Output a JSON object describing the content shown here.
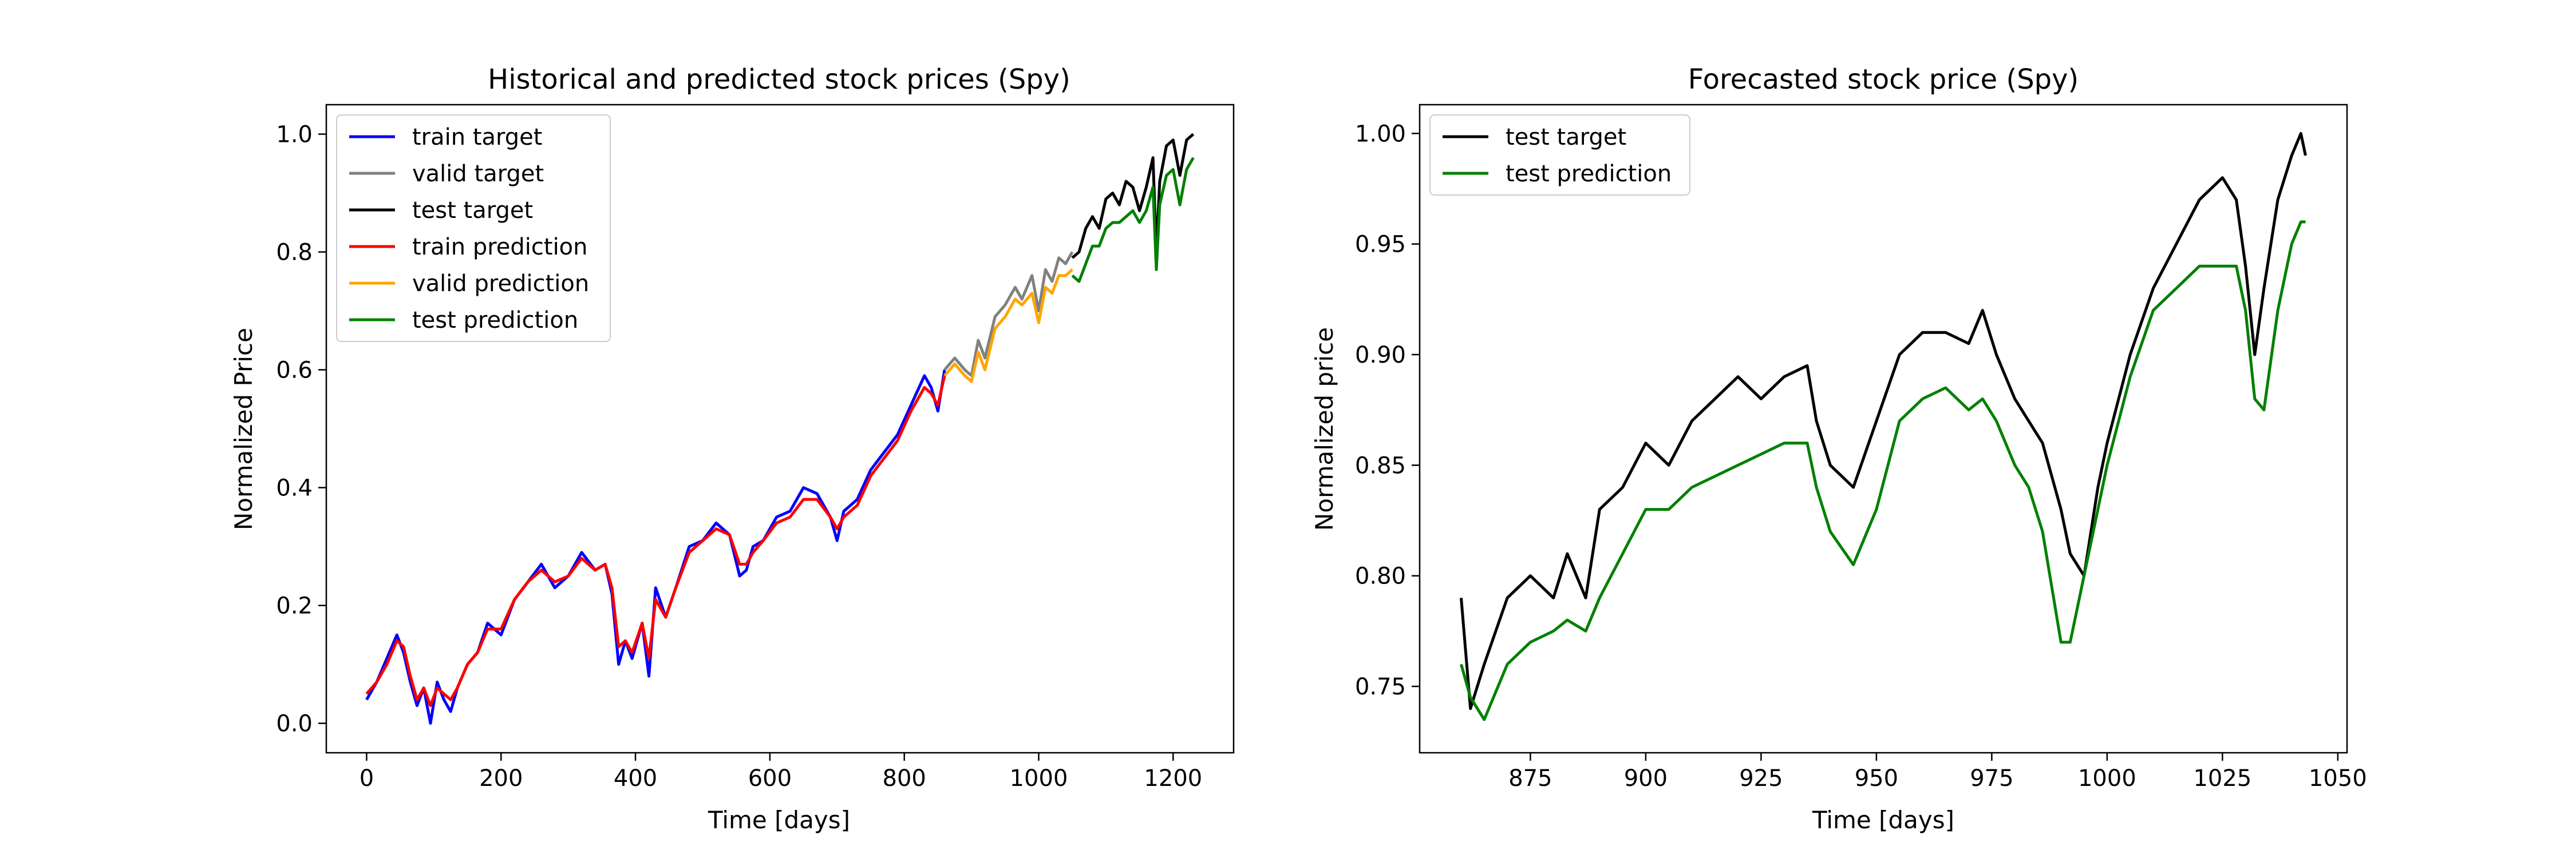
{
  "chart_data": [
    {
      "type": "line",
      "title": "Historical and predicted stock prices (Spy)",
      "xlabel": "Time [days]",
      "ylabel": "Normalized Price",
      "xlim": [
        -60,
        1290
      ],
      "ylim": [
        -0.05,
        1.05
      ],
      "xticks": [
        0,
        200,
        400,
        600,
        800,
        1000,
        1200
      ],
      "yticks": [
        0.0,
        0.2,
        0.4,
        0.6,
        0.8,
        1.0
      ],
      "grid": false,
      "legend_position": "upper left",
      "series": [
        {
          "name": "train target",
          "color": "#0000ff",
          "x": [
            0,
            15,
            30,
            45,
            55,
            65,
            75,
            85,
            95,
            105,
            115,
            125,
            135,
            150,
            165,
            180,
            200,
            220,
            240,
            260,
            280,
            300,
            320,
            340,
            355,
            365,
            375,
            385,
            395,
            410,
            420,
            430,
            445,
            460,
            480,
            500,
            520,
            540,
            555,
            565,
            575,
            590,
            610,
            630,
            650,
            670,
            690,
            700,
            710,
            730,
            750,
            770,
            790,
            810,
            830,
            840,
            850,
            860
          ],
          "y": [
            0.04,
            0.07,
            0.11,
            0.15,
            0.12,
            0.07,
            0.03,
            0.06,
            0.0,
            0.07,
            0.04,
            0.02,
            0.06,
            0.1,
            0.12,
            0.17,
            0.15,
            0.21,
            0.24,
            0.27,
            0.23,
            0.25,
            0.29,
            0.26,
            0.27,
            0.22,
            0.1,
            0.14,
            0.11,
            0.17,
            0.08,
            0.23,
            0.18,
            0.23,
            0.3,
            0.31,
            0.34,
            0.32,
            0.25,
            0.26,
            0.3,
            0.31,
            0.35,
            0.36,
            0.4,
            0.39,
            0.35,
            0.31,
            0.36,
            0.38,
            0.43,
            0.46,
            0.49,
            0.54,
            0.59,
            0.57,
            0.53,
            0.6
          ]
        },
        {
          "name": "valid target",
          "color": "#808080",
          "x": [
            860,
            875,
            890,
            900,
            910,
            920,
            935,
            950,
            965,
            975,
            990,
            1000,
            1010,
            1020,
            1030,
            1040,
            1050
          ],
          "y": [
            0.6,
            0.62,
            0.6,
            0.59,
            0.65,
            0.62,
            0.69,
            0.71,
            0.74,
            0.72,
            0.76,
            0.7,
            0.77,
            0.75,
            0.79,
            0.78,
            0.8
          ]
        },
        {
          "name": "test target",
          "color": "#000000",
          "x": [
            1050,
            1060,
            1070,
            1080,
            1090,
            1100,
            1110,
            1120,
            1130,
            1140,
            1150,
            1160,
            1170,
            1175,
            1180,
            1190,
            1200,
            1210,
            1220,
            1230
          ],
          "y": [
            0.79,
            0.8,
            0.84,
            0.86,
            0.84,
            0.89,
            0.9,
            0.88,
            0.92,
            0.91,
            0.87,
            0.91,
            0.96,
            0.8,
            0.92,
            0.98,
            0.99,
            0.93,
            0.99,
            1.0
          ]
        },
        {
          "name": "train prediction",
          "color": "#ff0000",
          "x": [
            0,
            15,
            30,
            45,
            55,
            65,
            75,
            85,
            95,
            105,
            115,
            125,
            135,
            150,
            165,
            180,
            200,
            220,
            240,
            260,
            280,
            300,
            320,
            340,
            355,
            365,
            375,
            385,
            395,
            410,
            420,
            430,
            445,
            460,
            480,
            500,
            520,
            540,
            555,
            565,
            575,
            590,
            610,
            630,
            650,
            670,
            690,
            700,
            710,
            730,
            750,
            770,
            790,
            810,
            830,
            840,
            850,
            860
          ],
          "y": [
            0.05,
            0.07,
            0.1,
            0.14,
            0.13,
            0.08,
            0.04,
            0.06,
            0.03,
            0.06,
            0.05,
            0.04,
            0.06,
            0.1,
            0.12,
            0.16,
            0.16,
            0.21,
            0.24,
            0.26,
            0.24,
            0.25,
            0.28,
            0.26,
            0.27,
            0.23,
            0.13,
            0.14,
            0.12,
            0.17,
            0.11,
            0.21,
            0.18,
            0.23,
            0.29,
            0.31,
            0.33,
            0.32,
            0.27,
            0.27,
            0.29,
            0.31,
            0.34,
            0.35,
            0.38,
            0.38,
            0.35,
            0.33,
            0.35,
            0.37,
            0.42,
            0.45,
            0.48,
            0.53,
            0.57,
            0.56,
            0.54,
            0.59
          ]
        },
        {
          "name": "valid prediction",
          "color": "#ffa500",
          "x": [
            860,
            875,
            890,
            900,
            910,
            920,
            935,
            950,
            965,
            975,
            990,
            1000,
            1010,
            1020,
            1030,
            1040,
            1050
          ],
          "y": [
            0.59,
            0.61,
            0.59,
            0.58,
            0.63,
            0.6,
            0.67,
            0.69,
            0.72,
            0.71,
            0.73,
            0.68,
            0.74,
            0.73,
            0.76,
            0.76,
            0.77
          ]
        },
        {
          "name": "test prediction",
          "color": "#008000",
          "x": [
            1050,
            1060,
            1070,
            1080,
            1090,
            1100,
            1110,
            1120,
            1130,
            1140,
            1150,
            1160,
            1170,
            1175,
            1180,
            1190,
            1200,
            1210,
            1220,
            1230
          ],
          "y": [
            0.76,
            0.75,
            0.78,
            0.81,
            0.81,
            0.84,
            0.85,
            0.85,
            0.86,
            0.87,
            0.85,
            0.87,
            0.91,
            0.77,
            0.88,
            0.93,
            0.94,
            0.88,
            0.94,
            0.96
          ]
        }
      ]
    },
    {
      "type": "line",
      "title": "Forecasted stock price (Spy)",
      "xlabel": "Time [days]",
      "ylabel": "Normalized price",
      "xlim": [
        851,
        1052
      ],
      "ylim": [
        0.72,
        1.013
      ],
      "xticks": [
        875,
        900,
        925,
        950,
        975,
        1000,
        1025,
        1050
      ],
      "yticks": [
        0.75,
        0.8,
        0.85,
        0.9,
        0.95,
        1.0
      ],
      "grid": false,
      "legend_position": "upper left",
      "series": [
        {
          "name": "test target",
          "color": "#000000",
          "x": [
            860,
            862,
            865,
            870,
            875,
            880,
            883,
            887,
            890,
            895,
            900,
            905,
            910,
            915,
            920,
            925,
            930,
            935,
            937,
            940,
            945,
            950,
            955,
            960,
            965,
            970,
            973,
            976,
            980,
            983,
            986,
            990,
            992,
            995,
            998,
            1000,
            1005,
            1010,
            1015,
            1020,
            1025,
            1028,
            1030,
            1032,
            1034,
            1037,
            1040,
            1042,
            1043
          ],
          "y": [
            0.79,
            0.74,
            0.76,
            0.79,
            0.8,
            0.79,
            0.81,
            0.79,
            0.83,
            0.84,
            0.86,
            0.85,
            0.87,
            0.88,
            0.89,
            0.88,
            0.89,
            0.895,
            0.87,
            0.85,
            0.84,
            0.87,
            0.9,
            0.91,
            0.91,
            0.905,
            0.92,
            0.9,
            0.88,
            0.87,
            0.86,
            0.83,
            0.81,
            0.8,
            0.84,
            0.86,
            0.9,
            0.93,
            0.95,
            0.97,
            0.98,
            0.97,
            0.94,
            0.9,
            0.93,
            0.97,
            0.99,
            1.0,
            0.99
          ]
        },
        {
          "name": "test prediction",
          "color": "#008000",
          "x": [
            860,
            862,
            865,
            870,
            875,
            880,
            883,
            887,
            890,
            895,
            900,
            905,
            910,
            915,
            920,
            925,
            930,
            935,
            937,
            940,
            945,
            950,
            955,
            960,
            965,
            970,
            973,
            976,
            980,
            983,
            986,
            990,
            992,
            995,
            998,
            1000,
            1005,
            1010,
            1015,
            1020,
            1025,
            1028,
            1030,
            1032,
            1034,
            1037,
            1040,
            1042,
            1043
          ],
          "y": [
            0.76,
            0.745,
            0.735,
            0.76,
            0.77,
            0.775,
            0.78,
            0.775,
            0.79,
            0.81,
            0.83,
            0.83,
            0.84,
            0.845,
            0.85,
            0.855,
            0.86,
            0.86,
            0.84,
            0.82,
            0.805,
            0.83,
            0.87,
            0.88,
            0.885,
            0.875,
            0.88,
            0.87,
            0.85,
            0.84,
            0.82,
            0.77,
            0.77,
            0.8,
            0.83,
            0.85,
            0.89,
            0.92,
            0.93,
            0.94,
            0.94,
            0.94,
            0.92,
            0.88,
            0.875,
            0.92,
            0.95,
            0.96,
            0.96
          ]
        }
      ]
    }
  ]
}
